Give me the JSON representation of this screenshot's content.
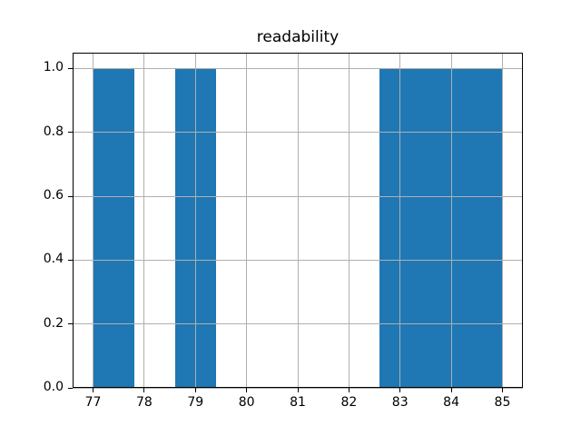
{
  "figure": {
    "background_color": "#ffffff"
  },
  "chart_data": {
    "type": "bar",
    "title": "readability",
    "xlabel": "",
    "ylabel": "",
    "bar_color": "#1f77b4",
    "grid_color": "#b0b0b0",
    "axis_color": "#000000",
    "grid": true,
    "grid_above_bars": true,
    "legend": null,
    "xlim": [
      76.6,
      85.4
    ],
    "ylim": [
      0,
      1.05
    ],
    "x_tick_values": [
      77,
      78,
      79,
      80,
      81,
      82,
      83,
      84,
      85
    ],
    "x_tick_labels": [
      "77",
      "78",
      "79",
      "80",
      "81",
      "82",
      "83",
      "84",
      "85"
    ],
    "y_tick_values": [
      0.0,
      0.2,
      0.4,
      0.6,
      0.8,
      1.0
    ],
    "y_tick_labels": [
      "0.0",
      "0.2",
      "0.4",
      "0.6",
      "0.8",
      "1.0"
    ],
    "bins": [
      {
        "start": 77.0,
        "end": 77.8,
        "height": 1
      },
      {
        "start": 77.8,
        "end": 78.6,
        "height": 0
      },
      {
        "start": 78.6,
        "end": 79.4,
        "height": 1
      },
      {
        "start": 79.4,
        "end": 80.2,
        "height": 0
      },
      {
        "start": 80.2,
        "end": 81.0,
        "height": 0
      },
      {
        "start": 81.0,
        "end": 81.8,
        "height": 0
      },
      {
        "start": 81.8,
        "end": 82.6,
        "height": 0
      },
      {
        "start": 82.6,
        "end": 83.4,
        "height": 1
      },
      {
        "start": 83.4,
        "end": 84.2,
        "height": 1
      },
      {
        "start": 84.2,
        "end": 85.0,
        "height": 1
      }
    ]
  }
}
